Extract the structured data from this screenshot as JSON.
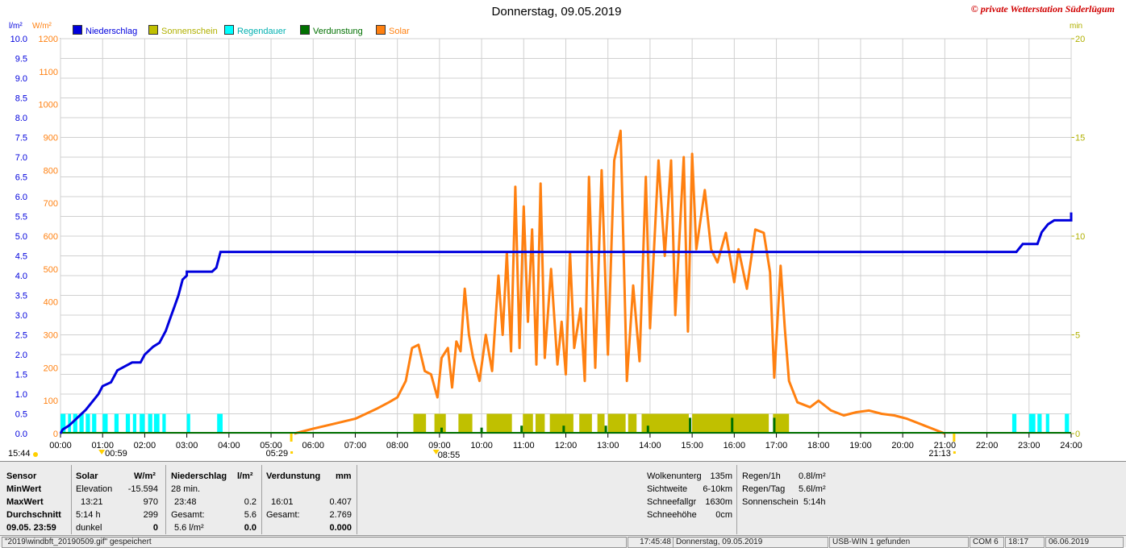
{
  "header": {
    "title": "Donnerstag, 09.05.2019",
    "credit": "© private Wetterstation Süderlügum",
    "left_unit_1": "l/m²",
    "left_unit_2": "W/m²",
    "right_unit": "min"
  },
  "legend": [
    {
      "label": "Niederschlag",
      "color": "#0000dd"
    },
    {
      "label": "Sonnenschein",
      "color": "#c0c000"
    },
    {
      "label": "Regendauer",
      "color": "#00ffff"
    },
    {
      "label": "Verdunstung",
      "color": "#007000"
    },
    {
      "label": "Solar",
      "color": "#ff8010"
    }
  ],
  "chart_data": {
    "type": "line",
    "title": "Donnerstag, 09.05.2019",
    "x_ticks": [
      "00:00",
      "01:00",
      "02:00",
      "03:00",
      "04:00",
      "05:00",
      "06:00",
      "07:00",
      "08:00",
      "09:00",
      "10:00",
      "11:00",
      "12:00",
      "13:00",
      "14:00",
      "15:00",
      "16:00",
      "17:00",
      "18:00",
      "19:00",
      "20:00",
      "21:00",
      "22:00",
      "23:00",
      "24:00"
    ],
    "xlim_hours": [
      0,
      24
    ],
    "y_left_rain": {
      "unit": "l/m²",
      "lim": [
        0,
        10
      ],
      "ticks": [
        "0.0",
        "0.5",
        "1.0",
        "1.5",
        "2.0",
        "2.5",
        "3.0",
        "3.5",
        "4.0",
        "4.5",
        "5.0",
        "5.5",
        "6.0",
        "6.5",
        "7.0",
        "7.5",
        "8.0",
        "8.5",
        "9.0",
        "9.5",
        "10.0"
      ],
      "color": "#0000dd"
    },
    "y_left_solar": {
      "unit": "W/m²",
      "lim": [
        0,
        1200
      ],
      "ticks": [
        "0",
        "100",
        "200",
        "300",
        "400",
        "500",
        "600",
        "700",
        "800",
        "900",
        "1000",
        "1100",
        "1200"
      ],
      "color": "#ff8010"
    },
    "y_right_minutes": {
      "unit": "min",
      "lim": [
        0,
        20
      ],
      "ticks": [
        "0",
        "5",
        "10",
        "15",
        "20"
      ],
      "color": "#b0b000"
    },
    "markers": [
      {
        "label": "15:44",
        "hour": 0.0
      },
      {
        "label": "00:59",
        "hour": 0.98
      },
      {
        "label": "05:29",
        "hour": 5.48
      },
      {
        "label": "08:55",
        "hour": 8.92
      },
      {
        "label": "21:13",
        "hour": 21.22
      }
    ],
    "series": [
      {
        "name": "Niederschlag",
        "color": "#0000dd",
        "points": [
          [
            0,
            0
          ],
          [
            0.05,
            0.1
          ],
          [
            0.2,
            0.2
          ],
          [
            0.3,
            0.3
          ],
          [
            0.4,
            0.4
          ],
          [
            0.5,
            0.5
          ],
          [
            0.6,
            0.6
          ],
          [
            0.75,
            0.8
          ],
          [
            0.9,
            1.0
          ],
          [
            1.0,
            1.2
          ],
          [
            1.2,
            1.3
          ],
          [
            1.35,
            1.6
          ],
          [
            1.7,
            1.8
          ],
          [
            1.9,
            1.8
          ],
          [
            2.0,
            2.0
          ],
          [
            2.2,
            2.2
          ],
          [
            2.35,
            2.3
          ],
          [
            2.5,
            2.6
          ],
          [
            2.6,
            2.9
          ],
          [
            2.7,
            3.2
          ],
          [
            2.8,
            3.5
          ],
          [
            2.85,
            3.7
          ],
          [
            2.9,
            3.9
          ],
          [
            3.0,
            4.0
          ],
          [
            3.0,
            4.1
          ],
          [
            3.15,
            4.1
          ],
          [
            3.6,
            4.1
          ],
          [
            3.7,
            4.2
          ],
          [
            3.75,
            4.4
          ],
          [
            3.8,
            4.6
          ],
          [
            4.0,
            4.6
          ],
          [
            5.3,
            4.6
          ],
          [
            8.0,
            4.6
          ],
          [
            12.0,
            4.6
          ],
          [
            16.0,
            4.6
          ],
          [
            20.0,
            4.6
          ],
          [
            22.7,
            4.6
          ],
          [
            22.85,
            4.8
          ],
          [
            23.2,
            4.8
          ],
          [
            23.3,
            5.1
          ],
          [
            23.45,
            5.3
          ],
          [
            23.6,
            5.4
          ],
          [
            24.0,
            5.4
          ],
          [
            24.0,
            5.6
          ]
        ]
      },
      {
        "name": "Solar",
        "color": "#ff8010",
        "points": [
          [
            5.55,
            0
          ],
          [
            6.0,
            15
          ],
          [
            6.5,
            30
          ],
          [
            7.0,
            45
          ],
          [
            7.5,
            75
          ],
          [
            7.8,
            95
          ],
          [
            8.0,
            110
          ],
          [
            8.2,
            160
          ],
          [
            8.35,
            260
          ],
          [
            8.5,
            270
          ],
          [
            8.65,
            190
          ],
          [
            8.8,
            180
          ],
          [
            8.95,
            110
          ],
          [
            9.05,
            230
          ],
          [
            9.2,
            260
          ],
          [
            9.3,
            140
          ],
          [
            9.4,
            280
          ],
          [
            9.5,
            250
          ],
          [
            9.6,
            440
          ],
          [
            9.7,
            300
          ],
          [
            9.8,
            230
          ],
          [
            9.95,
            160
          ],
          [
            10.1,
            300
          ],
          [
            10.25,
            190
          ],
          [
            10.4,
            480
          ],
          [
            10.5,
            300
          ],
          [
            10.6,
            550
          ],
          [
            10.7,
            250
          ],
          [
            10.8,
            750
          ],
          [
            10.9,
            260
          ],
          [
            11.0,
            690
          ],
          [
            11.1,
            340
          ],
          [
            11.2,
            620
          ],
          [
            11.3,
            210
          ],
          [
            11.4,
            760
          ],
          [
            11.5,
            230
          ],
          [
            11.65,
            500
          ],
          [
            11.8,
            210
          ],
          [
            11.9,
            340
          ],
          [
            12.0,
            180
          ],
          [
            12.1,
            550
          ],
          [
            12.2,
            260
          ],
          [
            12.35,
            380
          ],
          [
            12.45,
            160
          ],
          [
            12.55,
            780
          ],
          [
            12.7,
            200
          ],
          [
            12.85,
            800
          ],
          [
            13.0,
            240
          ],
          [
            13.15,
            830
          ],
          [
            13.3,
            920
          ],
          [
            13.45,
            160
          ],
          [
            13.6,
            450
          ],
          [
            13.75,
            220
          ],
          [
            13.9,
            780
          ],
          [
            14.0,
            320
          ],
          [
            14.2,
            830
          ],
          [
            14.35,
            540
          ],
          [
            14.5,
            830
          ],
          [
            14.6,
            360
          ],
          [
            14.8,
            840
          ],
          [
            14.9,
            310
          ],
          [
            15.0,
            850
          ],
          [
            15.1,
            560
          ],
          [
            15.3,
            740
          ],
          [
            15.45,
            560
          ],
          [
            15.6,
            520
          ],
          [
            15.8,
            610
          ],
          [
            16.0,
            460
          ],
          [
            16.1,
            560
          ],
          [
            16.3,
            440
          ],
          [
            16.5,
            620
          ],
          [
            16.7,
            610
          ],
          [
            16.85,
            490
          ],
          [
            16.95,
            170
          ],
          [
            17.1,
            510
          ],
          [
            17.2,
            320
          ],
          [
            17.3,
            160
          ],
          [
            17.5,
            95
          ],
          [
            17.8,
            80
          ],
          [
            18.0,
            100
          ],
          [
            18.3,
            70
          ],
          [
            18.6,
            55
          ],
          [
            18.9,
            65
          ],
          [
            19.2,
            70
          ],
          [
            19.5,
            60
          ],
          [
            19.8,
            55
          ],
          [
            20.1,
            45
          ],
          [
            20.5,
            25
          ],
          [
            20.8,
            10
          ],
          [
            21.0,
            0
          ]
        ]
      },
      {
        "name": "Sonnenschein",
        "color": "#c0c000",
        "bars_hours": [
          [
            8.38,
            8.68
          ],
          [
            8.88,
            9.15
          ],
          [
            9.45,
            9.78
          ],
          [
            10.12,
            10.72
          ],
          [
            10.98,
            11.22
          ],
          [
            11.28,
            11.5
          ],
          [
            11.62,
            12.18
          ],
          [
            12.32,
            12.62
          ],
          [
            12.75,
            12.92
          ],
          [
            13.0,
            13.42
          ],
          [
            13.48,
            13.68
          ],
          [
            13.8,
            14.92
          ],
          [
            15.0,
            16.82
          ],
          [
            16.92,
            17.3
          ]
        ],
        "value_min": 1.0
      },
      {
        "name": "Regendauer",
        "color": "#00ffff",
        "bars_hours": [
          [
            0.0,
            0.12
          ],
          [
            0.18,
            0.25
          ],
          [
            0.3,
            0.4
          ],
          [
            0.45,
            0.55
          ],
          [
            0.6,
            0.7
          ],
          [
            0.75,
            0.85
          ],
          [
            1.0,
            1.12
          ],
          [
            1.28,
            1.38
          ],
          [
            1.55,
            1.65
          ],
          [
            1.72,
            1.8
          ],
          [
            1.88,
            2.0
          ],
          [
            2.08,
            2.18
          ],
          [
            2.22,
            2.35
          ],
          [
            2.42,
            2.5
          ],
          [
            3.0,
            3.08
          ],
          [
            3.72,
            3.85
          ],
          [
            22.6,
            22.7
          ],
          [
            23.0,
            23.15
          ],
          [
            23.2,
            23.3
          ],
          [
            23.4,
            23.48
          ],
          [
            23.85,
            23.95
          ]
        ],
        "value_min": 1.0
      },
      {
        "name": "Verdunstung",
        "color": "#007000",
        "spikes_hours": [
          9.05,
          10.0,
          10.95,
          11.95,
          12.95,
          13.95,
          14.95,
          15.95,
          16.95
        ],
        "spike_heights_min": [
          0.3,
          0.3,
          0.4,
          0.4,
          0.4,
          0.4,
          0.8,
          0.8,
          0.8
        ]
      }
    ]
  },
  "stats": {
    "sensor_col": {
      "header": "Sensor",
      "rows": [
        "MinWert",
        "MaxWert",
        "Durchschnitt",
        "09.05.  23:59"
      ]
    },
    "solar_col": {
      "header": "Solar",
      "unit": "W/m²",
      "rows": [
        [
          "Elevation",
          "-15.594"
        ],
        [
          "13:21",
          "970"
        ],
        [
          "5:14 h",
          "299"
        ],
        [
          "dunkel",
          "0"
        ]
      ]
    },
    "rain_col": {
      "header": "Niederschlag",
      "unit": "l/m²",
      "rows": [
        [
          "28 min.",
          ""
        ],
        [
          "23:48",
          "0.2"
        ],
        [
          "Gesamt:",
          "5.6"
        ],
        [
          "5.6 l/m²",
          "0.0"
        ]
      ]
    },
    "evap_col": {
      "header": "Verdunstung",
      "unit": "mm",
      "rows": [
        [
          "",
          ""
        ],
        [
          "16:01",
          "0.407"
        ],
        [
          "Gesamt:",
          "2.769"
        ],
        [
          "",
          "0.000"
        ]
      ]
    },
    "weather_col": {
      "rows": [
        [
          "Wolkenunterg",
          "135m"
        ],
        [
          "Sichtweite",
          "6-10km"
        ],
        [
          "Schneefallgr",
          "1630m"
        ],
        [
          "Schneehöhe",
          "0cm"
        ]
      ]
    },
    "rain_rates": {
      "rows": [
        [
          "Regen/1h",
          "0.8l/m²"
        ],
        [
          "Regen/Tag",
          "5.6l/m²"
        ],
        [
          "Sonnenschein",
          "5:14h"
        ]
      ]
    }
  },
  "statusbar": {
    "file": "\"2019\\windbft_20190509.gif\"  gespeichert",
    "time": "17:45:48",
    "date_label": "Donnerstag, 09.05.2019",
    "usb": "USB-WIN 1 gefunden",
    "com": "COM 6",
    "clock": "18:17",
    "date": "06.06.2019"
  }
}
